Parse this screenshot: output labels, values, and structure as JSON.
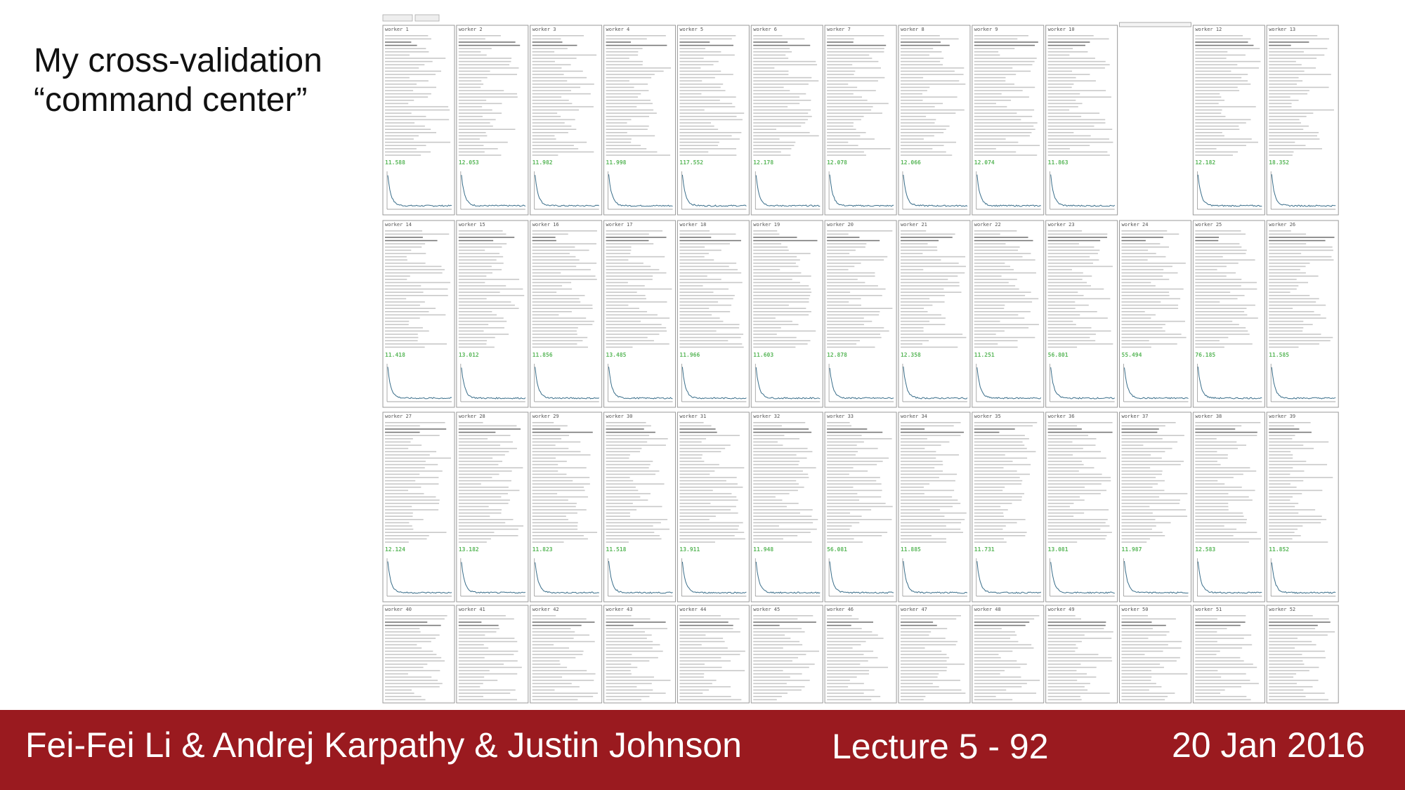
{
  "slide": {
    "title": [
      "My cross-validation",
      "“command center”"
    ]
  },
  "footer": {
    "authors": "Fei-Fei Li & Andrej Karpathy & Justin Johnson",
    "lecture": "Lecture 5 - 92",
    "date": "20 Jan 2016"
  },
  "dashboard": {
    "rows": [
      [
        {
          "worker": "worker 1",
          "loss": "11.588"
        },
        {
          "worker": "worker 2",
          "loss": "12.053"
        },
        {
          "worker": "worker 3",
          "loss": "11.982"
        },
        {
          "worker": "worker 4",
          "loss": "11.998"
        },
        {
          "worker": "worker 5",
          "loss": "117.552"
        },
        {
          "worker": "worker 6",
          "loss": "12.178"
        },
        {
          "worker": "worker 7",
          "loss": "12.078"
        },
        {
          "worker": "worker 8",
          "loss": "12.066"
        },
        {
          "worker": "worker 9",
          "loss": "12.074"
        },
        {
          "worker": "worker 10",
          "loss": "11.863"
        },
        null,
        {
          "worker": "worker 12",
          "loss": "12.182"
        },
        {
          "worker": "worker 13",
          "loss": "18.352"
        }
      ],
      [
        {
          "worker": "worker 14",
          "loss": "11.418"
        },
        {
          "worker": "worker 15",
          "loss": "13.012"
        },
        {
          "worker": "worker 16",
          "loss": "11.856"
        },
        {
          "worker": "worker 17",
          "loss": "13.485"
        },
        {
          "worker": "worker 18",
          "loss": "11.966"
        },
        {
          "worker": "worker 19",
          "loss": "11.603"
        },
        {
          "worker": "worker 20",
          "loss": "12.878"
        },
        {
          "worker": "worker 21",
          "loss": "12.358"
        },
        {
          "worker": "worker 22",
          "loss": "11.251"
        },
        {
          "worker": "worker 23",
          "loss": "56.801"
        },
        {
          "worker": "worker 24",
          "loss": "55.494"
        },
        {
          "worker": "worker 25",
          "loss": "76.185"
        },
        {
          "worker": "worker 26",
          "loss": "11.585"
        }
      ],
      [
        {
          "worker": "worker 27",
          "loss": "12.124"
        },
        {
          "worker": "worker 28",
          "loss": "13.182"
        },
        {
          "worker": "worker 29",
          "loss": "11.823"
        },
        {
          "worker": "worker 30",
          "loss": "11.518"
        },
        {
          "worker": "worker 31",
          "loss": "13.911"
        },
        {
          "worker": "worker 32",
          "loss": "11.948"
        },
        {
          "worker": "worker 33",
          "loss": "56.081"
        },
        {
          "worker": "worker 34",
          "loss": "11.885"
        },
        {
          "worker": "worker 35",
          "loss": "11.731"
        },
        {
          "worker": "worker 36",
          "loss": "13.081"
        },
        {
          "worker": "worker 37",
          "loss": "11.987"
        },
        {
          "worker": "worker 38",
          "loss": "12.583"
        },
        {
          "worker": "worker 39",
          "loss": "11.852"
        }
      ],
      [
        {
          "worker": "worker 40"
        },
        {
          "worker": "worker 41"
        },
        {
          "worker": "worker 42"
        },
        {
          "worker": "worker 43"
        },
        {
          "worker": "worker 44"
        },
        {
          "worker": "worker 45"
        },
        {
          "worker": "worker 46"
        },
        {
          "worker": "worker 47"
        },
        {
          "worker": "worker 48"
        },
        {
          "worker": "worker 49"
        },
        {
          "worker": "worker 50"
        },
        {
          "worker": "worker 51"
        },
        {
          "worker": "worker 52"
        }
      ]
    ]
  }
}
